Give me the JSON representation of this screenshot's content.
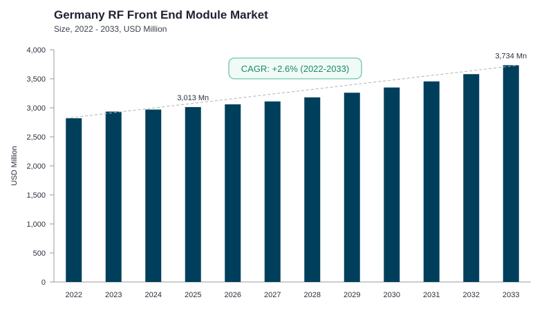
{
  "header": {
    "title": "Germany RF Front End Module Market",
    "subtitle": "Size, 2022 - 2033, USD Million"
  },
  "chart_data": {
    "type": "bar",
    "categories": [
      "2022",
      "2023",
      "2024",
      "2025",
      "2026",
      "2027",
      "2028",
      "2029",
      "2030",
      "2031",
      "2032",
      "2033"
    ],
    "values": [
      2820,
      2935,
      2970,
      3013,
      3060,
      3110,
      3180,
      3260,
      3350,
      3455,
      3580,
      3734
    ],
    "ylabel": "USD Million",
    "xlabel": "",
    "ylim": [
      0,
      4000
    ],
    "yticks": [
      0,
      500,
      1000,
      1500,
      2000,
      2500,
      3000,
      3500,
      4000
    ],
    "ytick_labels": [
      "0",
      "500",
      "1,000",
      "1,500",
      "2,000",
      "2,500",
      "3,000",
      "3,500",
      "4,000"
    ],
    "bar_color": "#003f5c",
    "data_labels": [
      {
        "category": "2025",
        "text": "3,013 Mn"
      },
      {
        "category": "2033",
        "text": "3,734 Mn"
      }
    ],
    "annotation": {
      "text": "CAGR: +2.6% (2022-2033)",
      "border_color": "#6cc7a3",
      "fill_color": "#f0faf6",
      "text_color": "#1d8a63"
    },
    "trend_line": {
      "from": "2022",
      "to": "2033",
      "style": "dashed",
      "color": "#b0b0b0"
    },
    "grid": false
  }
}
